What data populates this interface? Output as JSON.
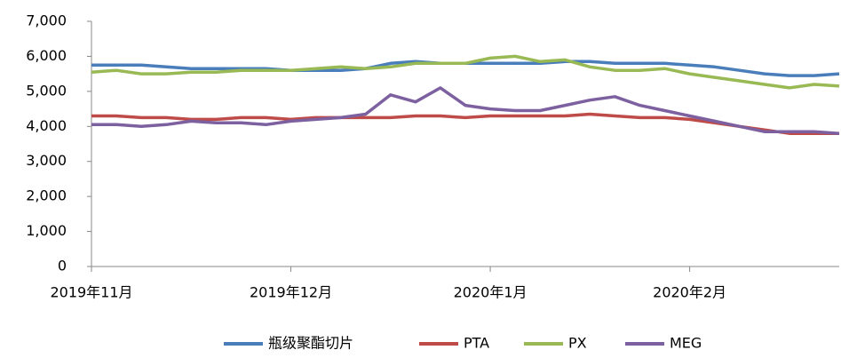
{
  "chart_data": {
    "type": "line",
    "categories": [
      "2019年11月",
      null,
      null,
      null,
      null,
      null,
      null,
      null,
      "2019年12月",
      null,
      null,
      null,
      null,
      null,
      null,
      null,
      "2020年1月",
      null,
      null,
      null,
      null,
      null,
      null,
      null,
      "2020年2月",
      null,
      null,
      null,
      null,
      null,
      null
    ],
    "series": [
      {
        "name": "瓶级聚酯切片",
        "color": "#4a7ebb",
        "values": [
          5750,
          5750,
          5750,
          5700,
          5650,
          5650,
          5650,
          5650,
          5600,
          5600,
          5600,
          5650,
          5800,
          5850,
          5800,
          5800,
          5800,
          5800,
          5800,
          5850,
          5850,
          5800,
          5800,
          5800,
          5750,
          5700,
          5600,
          5500,
          5450,
          5450,
          5500
        ]
      },
      {
        "name": "PTA",
        "color": "#be4b48",
        "values": [
          4300,
          4300,
          4250,
          4250,
          4200,
          4200,
          4250,
          4250,
          4200,
          4250,
          4250,
          4250,
          4250,
          4300,
          4300,
          4250,
          4300,
          4300,
          4300,
          4300,
          4350,
          4300,
          4250,
          4250,
          4200,
          4100,
          4000,
          3900,
          3800,
          3800,
          3800
        ]
      },
      {
        "name": "PX",
        "color": "#98b954",
        "values": [
          5550,
          5600,
          5500,
          5500,
          5550,
          5550,
          5600,
          5600,
          5600,
          5650,
          5700,
          5650,
          5700,
          5800,
          5800,
          5800,
          5950,
          6000,
          5850,
          5900,
          5700,
          5600,
          5600,
          5650,
          5500,
          5400,
          5300,
          5200,
          5100,
          5200,
          5150
        ]
      },
      {
        "name": "MEG",
        "color": "#7d60a0",
        "values": [
          4050,
          4050,
          4000,
          4050,
          4150,
          4100,
          4100,
          4050,
          4150,
          4200,
          4250,
          4350,
          4900,
          4700,
          5100,
          4600,
          4500,
          4450,
          4450,
          4600,
          4750,
          4850,
          4600,
          4450,
          4300,
          4150,
          4000,
          3850,
          3850,
          3850,
          3800
        ]
      }
    ],
    "ylim": [
      0,
      7000
    ],
    "yticks": [
      0,
      {
        "value": 1000,
        "label": "1,000"
      },
      {
        "value": 2000,
        "label": "2,000"
      },
      {
        "value": 3000,
        "label": "3,000"
      },
      {
        "value": 4000,
        "label": "4,000"
      },
      {
        "value": 5000,
        "label": "5,000"
      },
      {
        "value": 6000,
        "label": "6,000"
      },
      {
        "value": 7000,
        "label": "7,000"
      }
    ],
    "legend": "bottom"
  }
}
